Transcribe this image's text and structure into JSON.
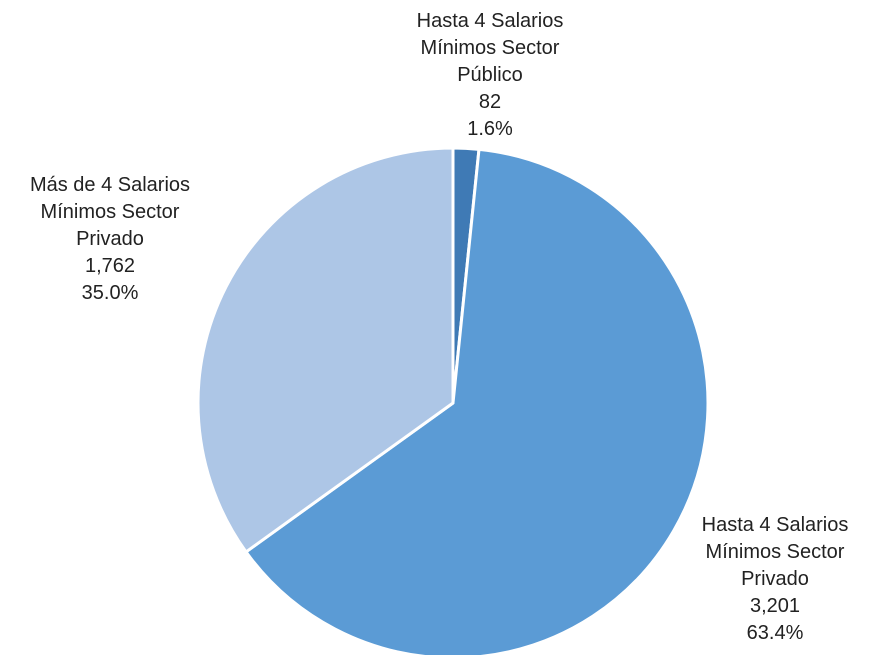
{
  "chart_data": {
    "type": "pie",
    "categories": [
      "Hasta 4 Salarios Mínimos Sector Público",
      "Hasta 4 Salarios Mínimos Sector Privado",
      "Más de 4 Salarios Mínimos Sector Privado"
    ],
    "values": [
      82,
      3201,
      1762
    ],
    "value_labels": [
      "82",
      "3,201",
      "1,762"
    ],
    "percent_labels": [
      "1.6%",
      "63.4%",
      "35.0%"
    ],
    "colors": [
      "#3f7ab5",
      "#5b9bd5",
      "#adc6e6"
    ]
  }
}
